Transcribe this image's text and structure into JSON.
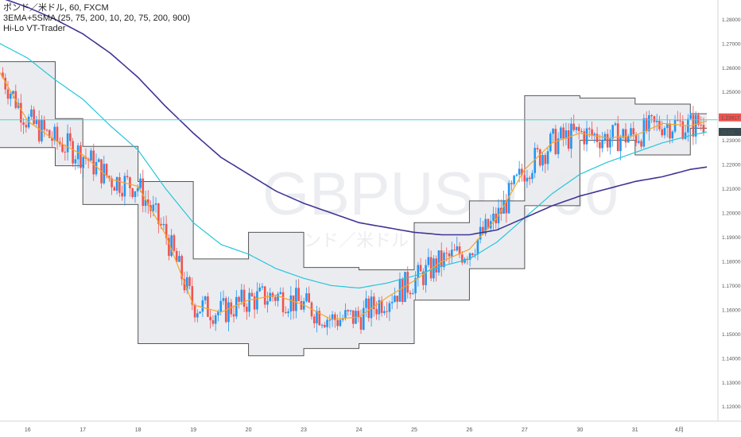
{
  "legend": {
    "line1": "ポンド／米ドル, 60, FXCM",
    "line2": "3EMA+5SMA (25, 75, 200, 10, 20, 75, 200, 900)",
    "line3": "Hi-Lo VT-Trader"
  },
  "watermark": {
    "symbol": "GBPUSD, 60",
    "subtitle": "ポンド／米ドル"
  },
  "price_tags": {
    "current": "1.23917",
    "countdown": "30:53",
    "current_value": 1.23917,
    "countdown_value": 1.2335
  },
  "colors": {
    "up": "#2196f3",
    "down": "#ef5350",
    "ema25": "#f5a623",
    "ema75": "#26c6da",
    "ema200": "#3f3594",
    "hilo_border": "#555555",
    "hilo_fill": "#e9eaee",
    "hline": "#4dd0e1",
    "tag_current": "#ef5350",
    "tag_countdown": "#37474f"
  },
  "chart_data": {
    "type": "line",
    "ylim": [
      1.114,
      1.288
    ],
    "y_ticks": [
      "1.28000",
      "1.27000",
      "1.26000",
      "1.25000",
      "1.24000",
      "1.23000",
      "1.22000",
      "1.21000",
      "1.20000",
      "1.19000",
      "1.18000",
      "1.17000",
      "1.16000",
      "1.15000",
      "1.14000",
      "1.13000",
      "1.12000"
    ],
    "x_ticks": [
      "16",
      "17",
      "18",
      "19",
      "20",
      "23",
      "24",
      "25",
      "26",
      "27",
      "30",
      "31",
      "4月"
    ],
    "x_range": [
      0,
      13
    ],
    "x_tick_positions": [
      0.5,
      1.5,
      2.5,
      3.5,
      4.5,
      5.5,
      6.5,
      7.5,
      8.5,
      9.5,
      10.5,
      11.5,
      12.3
    ],
    "horizontal_line": 1.2385,
    "hilo_channel": [
      {
        "x": 0.0,
        "high": 1.2625,
        "low": 1.227
      },
      {
        "x": 1.0,
        "high": 1.239,
        "low": 1.2195
      },
      {
        "x": 1.5,
        "high": 1.2275,
        "low": 1.2035
      },
      {
        "x": 2.5,
        "high": 1.213,
        "low": 1.146
      },
      {
        "x": 3.5,
        "high": 1.181,
        "low": 1.146
      },
      {
        "x": 4.5,
        "high": 1.192,
        "low": 1.141
      },
      {
        "x": 5.5,
        "high": 1.1775,
        "low": 1.144
      },
      {
        "x": 6.5,
        "high": 1.1765,
        "low": 1.146
      },
      {
        "x": 7.5,
        "high": 1.196,
        "low": 1.164
      },
      {
        "x": 8.5,
        "high": 1.205,
        "low": 1.177
      },
      {
        "x": 9.5,
        "high": 1.2485,
        "low": 1.203
      },
      {
        "x": 10.5,
        "high": 1.2475,
        "low": 1.23
      },
      {
        "x": 11.5,
        "high": 1.245,
        "low": 1.224
      },
      {
        "x": 12.5,
        "high": 1.241,
        "low": 1.235
      },
      {
        "x": 12.8,
        "high": 1.241,
        "low": 1.235
      }
    ],
    "series": [
      {
        "name": "EMA25",
        "x": [
          0,
          0.5,
          1,
          1.5,
          2,
          2.5,
          3,
          3.5,
          4,
          4.5,
          5,
          5.5,
          6,
          6.5,
          7,
          7.5,
          8,
          8.5,
          9,
          9.5,
          10,
          10.5,
          11,
          11.5,
          12,
          12.5,
          12.8
        ],
        "values": [
          1.258,
          1.238,
          1.23,
          1.224,
          1.214,
          1.211,
          1.191,
          1.162,
          1.159,
          1.164,
          1.166,
          1.162,
          1.156,
          1.157,
          1.165,
          1.172,
          1.18,
          1.185,
          1.198,
          1.218,
          1.229,
          1.233,
          1.231,
          1.232,
          1.237,
          1.236,
          1.238
        ]
      },
      {
        "name": "EMA75",
        "x": [
          0,
          0.5,
          1,
          1.5,
          2,
          2.5,
          3,
          3.5,
          4,
          4.5,
          5,
          5.5,
          6,
          6.5,
          7,
          7.5,
          8,
          8.5,
          9,
          9.5,
          10,
          10.5,
          11,
          11.5,
          12,
          12.5,
          12.8
        ],
        "values": [
          1.27,
          1.264,
          1.255,
          1.247,
          1.236,
          1.226,
          1.21,
          1.196,
          1.187,
          1.183,
          1.177,
          1.173,
          1.17,
          1.169,
          1.171,
          1.174,
          1.178,
          1.181,
          1.188,
          1.198,
          1.208,
          1.216,
          1.221,
          1.225,
          1.229,
          1.232,
          1.2335
        ]
      },
      {
        "name": "EMA200",
        "x": [
          0,
          0.5,
          1,
          1.5,
          2,
          2.5,
          3,
          3.5,
          4,
          4.5,
          5,
          5.5,
          6,
          6.5,
          7,
          7.5,
          8,
          8.5,
          9,
          9.5,
          10,
          10.5,
          11,
          11.5,
          12,
          12.5,
          12.8
        ],
        "values": [
          1.289,
          1.285,
          1.28,
          1.274,
          1.266,
          1.256,
          1.244,
          1.233,
          1.223,
          1.216,
          1.209,
          1.204,
          1.2,
          1.196,
          1.194,
          1.192,
          1.191,
          1.191,
          1.193,
          1.198,
          1.203,
          1.207,
          1.21,
          1.213,
          1.215,
          1.218,
          1.219
        ]
      }
    ]
  }
}
